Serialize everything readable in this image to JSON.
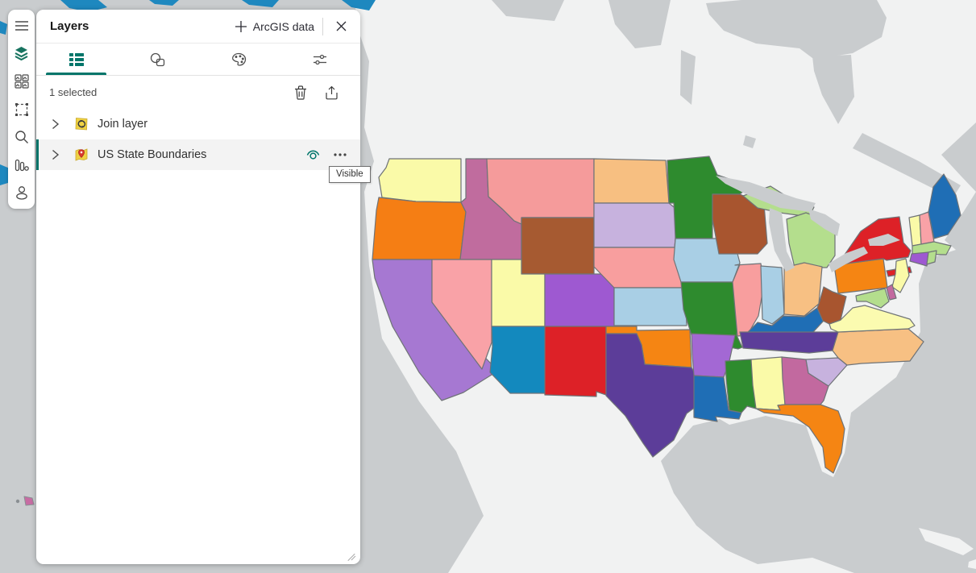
{
  "panel": {
    "title": "Layers",
    "add_data_label": "ArcGIS data",
    "selection_status": "1 selected",
    "tabs": [
      {
        "name": "layer-list",
        "active": true
      },
      {
        "name": "layer-shapes",
        "active": false
      },
      {
        "name": "layer-style",
        "active": false
      },
      {
        "name": "layer-settings",
        "active": false
      }
    ],
    "layers": [
      {
        "label": "Join layer",
        "selected": false
      },
      {
        "label": "US State Boundaries",
        "selected": true,
        "tooltip": "Visible"
      }
    ]
  },
  "sidebar": {
    "items": [
      {
        "name": "menu"
      },
      {
        "name": "layers",
        "active": true
      },
      {
        "name": "basemap-gallery"
      },
      {
        "name": "select"
      },
      {
        "name": "search"
      },
      {
        "name": "charts"
      },
      {
        "name": "account"
      }
    ]
  },
  "map": {
    "colors": {
      "water": "#C9CCCE",
      "land": "#F1F2F2",
      "state_border": "#6F7377",
      "arctic_layer": "#1E88BF",
      "hawaii_marker": "#C76CA3",
      "accent_teal": "#00756A"
    },
    "states": [
      {
        "id": "WA",
        "name": "Washington",
        "color": "#FAFAA8"
      },
      {
        "id": "OR",
        "name": "Oregon",
        "color": "#F57E14"
      },
      {
        "id": "ID",
        "name": "Idaho",
        "color": "#C06C9E"
      },
      {
        "id": "MT",
        "name": "Montana",
        "color": "#F59B9B"
      },
      {
        "id": "WY",
        "name": "Wyoming",
        "color": "#A65A31"
      },
      {
        "id": "CA",
        "name": "California",
        "color": "#A678D2"
      },
      {
        "id": "NV",
        "name": "Nevada",
        "color": "#F9A2A7"
      },
      {
        "id": "UT",
        "name": "Utah",
        "color": "#FAFAA8"
      },
      {
        "id": "CO",
        "name": "Colorado",
        "color": "#9E59D1"
      },
      {
        "id": "AZ",
        "name": "Arizona",
        "color": "#1389BE"
      },
      {
        "id": "NM",
        "name": "New Mexico",
        "color": "#DD2127"
      },
      {
        "id": "ND",
        "name": "North Dakota",
        "color": "#F7BF81"
      },
      {
        "id": "SD",
        "name": "South Dakota",
        "color": "#C7B2DE"
      },
      {
        "id": "NE",
        "name": "Nebraska",
        "color": "#F89E9E"
      },
      {
        "id": "KS",
        "name": "Kansas",
        "color": "#A9CFE5"
      },
      {
        "id": "OK",
        "name": "Oklahoma",
        "color": "#F58513"
      },
      {
        "id": "TX",
        "name": "Texas",
        "color": "#5C3D99"
      },
      {
        "id": "MN",
        "name": "Minnesota",
        "color": "#2E8B2E"
      },
      {
        "id": "IA",
        "name": "Iowa",
        "color": "#A9CFE5"
      },
      {
        "id": "MO",
        "name": "Missouri",
        "color": "#2E8B2E"
      },
      {
        "id": "AR",
        "name": "Arkansas",
        "color": "#A368D4"
      },
      {
        "id": "LA",
        "name": "Louisiana",
        "color": "#1F6EB5"
      },
      {
        "id": "WI",
        "name": "Wisconsin",
        "color": "#A8552F"
      },
      {
        "id": "MI_UP",
        "name": "Michigan Upper Peninsula",
        "color": "#B4DE8D"
      },
      {
        "id": "MI_LP",
        "name": "Michigan",
        "color": "#B4DE8D"
      },
      {
        "id": "IL",
        "name": "Illinois",
        "color": "#F89E9E"
      },
      {
        "id": "IN",
        "name": "Indiana",
        "color": "#A9CFE5"
      },
      {
        "id": "OH",
        "name": "Ohio",
        "color": "#F7C083"
      },
      {
        "id": "KY",
        "name": "Kentucky",
        "color": "#1F6EB5"
      },
      {
        "id": "TN",
        "name": "Tennessee",
        "color": "#5C3D99"
      },
      {
        "id": "MS",
        "name": "Mississippi",
        "color": "#2E8B2E"
      },
      {
        "id": "AL",
        "name": "Alabama",
        "color": "#FAFAA8"
      },
      {
        "id": "GA",
        "name": "Georgia",
        "color": "#C2699F"
      },
      {
        "id": "FL",
        "name": "Florida",
        "color": "#F58513"
      },
      {
        "id": "SC",
        "name": "South Carolina",
        "color": "#C7B2DE"
      },
      {
        "id": "NC",
        "name": "North Carolina",
        "color": "#F7C083"
      },
      {
        "id": "VA",
        "name": "Virginia",
        "color": "#FBFBB0"
      },
      {
        "id": "WV",
        "name": "West Virginia",
        "color": "#A8552F"
      },
      {
        "id": "PA",
        "name": "Pennsylvania",
        "color": "#F58513"
      },
      {
        "id": "NY",
        "name": "New York",
        "color": "#DD2127"
      },
      {
        "id": "NY_LI",
        "name": "Long Island",
        "color": "#DD2127"
      },
      {
        "id": "NJ",
        "name": "New Jersey",
        "color": "#FAFAA8"
      },
      {
        "id": "DE",
        "name": "Delaware",
        "color": "#C2699F"
      },
      {
        "id": "MD",
        "name": "Maryland",
        "color": "#B4DE8D"
      },
      {
        "id": "VT",
        "name": "Vermont",
        "color": "#FAFAA8"
      },
      {
        "id": "NH",
        "name": "New Hampshire",
        "color": "#F9A2A7"
      },
      {
        "id": "ME",
        "name": "Maine",
        "color": "#1F6EB5"
      },
      {
        "id": "MA",
        "name": "Massachusetts",
        "color": "#B4DE8D"
      },
      {
        "id": "CT",
        "name": "Connecticut",
        "color": "#9E59D1"
      },
      {
        "id": "RI",
        "name": "Rhode Island",
        "color": "#B4DE8D"
      }
    ]
  }
}
